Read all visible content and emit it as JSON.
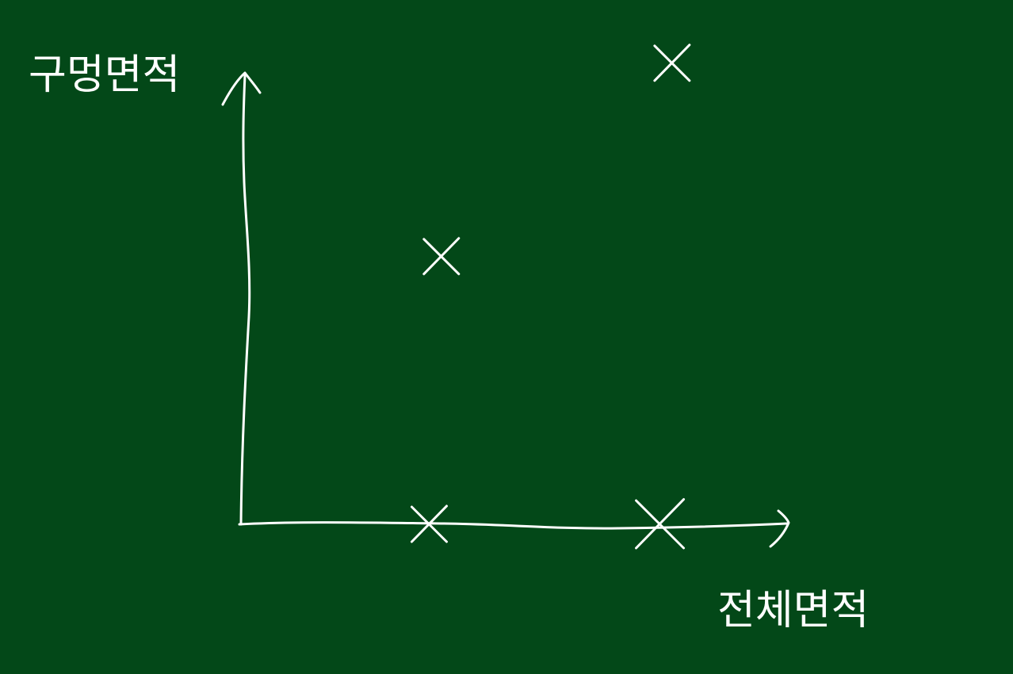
{
  "board": {
    "background": "#034818",
    "ink": "#ffffff"
  },
  "chart_data": {
    "type": "scatter",
    "xlabel": "전체면적",
    "ylabel": "구멍면적",
    "points": [
      {
        "x": 0.33,
        "y": 0.54
      },
      {
        "x": 0.71,
        "y": 0.93
      },
      {
        "x": 0.31,
        "y": 0.0
      },
      {
        "x": 0.69,
        "y": 0.0
      }
    ],
    "xlim": [
      0,
      1
    ],
    "ylim": [
      0,
      1
    ],
    "grid": false,
    "ticks": false
  }
}
